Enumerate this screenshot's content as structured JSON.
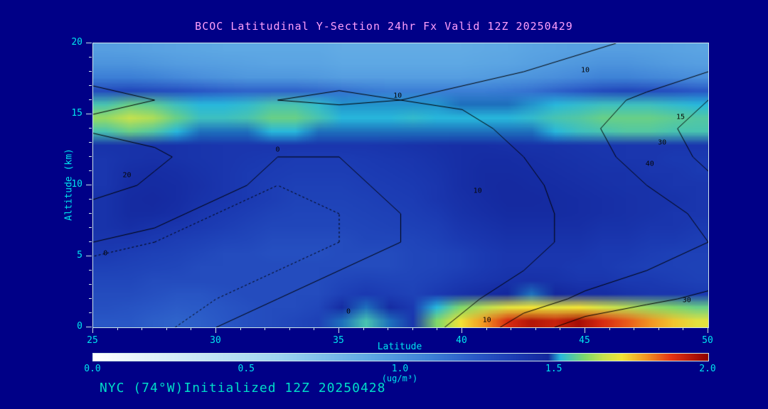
{
  "header": {
    "title": "BCOC Latitudinal Y-Section 24hr  Fx Valid 12Z 20250429"
  },
  "footer": {
    "text": "NYC (74°W)Initialized 12Z 20250428"
  },
  "colors": {
    "background": "#000087",
    "title_text": "#ff9ffb",
    "footer_text": "#00ddc8",
    "axis_text": "#00e5ee",
    "frame": "#cfe8e8",
    "contour_line": "#000000"
  },
  "colorbar": {
    "ticks": [
      "0.0",
      "0.5",
      "1.0",
      "1.5",
      "2.0"
    ],
    "min": 0.0,
    "max": 2.0,
    "unit_label": "(ug/m³)"
  },
  "chart_data": {
    "type": "heatmap",
    "title": "BCOC Latitudinal Y-Section 24hr  Fx Valid 12Z 20250429",
    "xlabel": "Latitude",
    "ylabel": "Altitude (km)",
    "x_ticks": [
      25,
      30,
      35,
      40,
      45,
      50
    ],
    "y_ticks": [
      0,
      5,
      10,
      15,
      20
    ],
    "x_range": [
      25,
      50
    ],
    "y_range": [
      0,
      20
    ],
    "x_step": 1,
    "y_step": 1,
    "fill_units": "ug/m³",
    "fill_range": [
      0,
      2
    ],
    "grid": false,
    "legend_position": "bottom-colorbar",
    "values_note": "rows from altitude 0 km (bottom) to 20 km (top); columns latitude 25 to 50",
    "values": [
      [
        1.25,
        1.25,
        1.22,
        1.2,
        1.22,
        1.25,
        1.28,
        1.3,
        1.32,
        1.35,
        1.5,
        1.55,
        1.5,
        1.4,
        1.6,
        1.72,
        1.8,
        1.9,
        1.95,
        1.92,
        1.97,
        1.9,
        1.85,
        1.8,
        1.75,
        1.7
      ],
      [
        1.28,
        1.27,
        1.25,
        1.23,
        1.24,
        1.26,
        1.28,
        1.3,
        1.3,
        1.32,
        1.45,
        1.5,
        1.45,
        1.38,
        1.52,
        1.6,
        1.65,
        1.7,
        1.72,
        1.7,
        1.72,
        1.68,
        1.65,
        1.62,
        1.6,
        1.58
      ],
      [
        1.3,
        1.3,
        1.28,
        1.26,
        1.26,
        1.28,
        1.3,
        1.3,
        1.3,
        1.3,
        1.35,
        1.38,
        1.36,
        1.34,
        1.38,
        1.42,
        1.45,
        1.48,
        1.5,
        1.48,
        1.45,
        1.45,
        1.42,
        1.4,
        1.4,
        1.38
      ],
      [
        1.32,
        1.32,
        1.3,
        1.3,
        1.3,
        1.3,
        1.3,
        1.3,
        1.3,
        1.3,
        1.32,
        1.34,
        1.33,
        1.33,
        1.35,
        1.38,
        1.4,
        1.42,
        1.43,
        1.42,
        1.4,
        1.4,
        1.38,
        1.38,
        1.36,
        1.35
      ],
      [
        1.35,
        1.34,
        1.33,
        1.32,
        1.3,
        1.3,
        1.3,
        1.3,
        1.3,
        1.3,
        1.3,
        1.3,
        1.3,
        1.32,
        1.33,
        1.35,
        1.38,
        1.4,
        1.4,
        1.4,
        1.38,
        1.38,
        1.36,
        1.35,
        1.35,
        1.34
      ],
      [
        1.38,
        1.36,
        1.35,
        1.34,
        1.32,
        1.3,
        1.3,
        1.28,
        1.28,
        1.28,
        1.3,
        1.3,
        1.3,
        1.32,
        1.33,
        1.35,
        1.38,
        1.4,
        1.4,
        1.4,
        1.4,
        1.38,
        1.38,
        1.36,
        1.35,
        1.35
      ],
      [
        1.4,
        1.4,
        1.38,
        1.36,
        1.35,
        1.33,
        1.32,
        1.3,
        1.3,
        1.3,
        1.3,
        1.32,
        1.32,
        1.33,
        1.35,
        1.38,
        1.4,
        1.42,
        1.42,
        1.42,
        1.42,
        1.4,
        1.4,
        1.38,
        1.38,
        1.36
      ],
      [
        1.42,
        1.44,
        1.42,
        1.4,
        1.38,
        1.36,
        1.34,
        1.32,
        1.32,
        1.32,
        1.32,
        1.33,
        1.34,
        1.35,
        1.36,
        1.4,
        1.42,
        1.44,
        1.44,
        1.44,
        1.44,
        1.42,
        1.42,
        1.4,
        1.4,
        1.38
      ],
      [
        1.42,
        1.46,
        1.46,
        1.44,
        1.4,
        1.38,
        1.36,
        1.34,
        1.33,
        1.33,
        1.33,
        1.34,
        1.35,
        1.36,
        1.38,
        1.42,
        1.44,
        1.46,
        1.46,
        1.46,
        1.45,
        1.44,
        1.43,
        1.42,
        1.4,
        1.4
      ],
      [
        1.42,
        1.46,
        1.47,
        1.45,
        1.42,
        1.4,
        1.38,
        1.36,
        1.34,
        1.34,
        1.34,
        1.35,
        1.36,
        1.37,
        1.4,
        1.43,
        1.45,
        1.47,
        1.47,
        1.46,
        1.45,
        1.44,
        1.43,
        1.42,
        1.42,
        1.4
      ],
      [
        1.4,
        1.45,
        1.46,
        1.45,
        1.43,
        1.4,
        1.38,
        1.36,
        1.35,
        1.35,
        1.35,
        1.36,
        1.37,
        1.38,
        1.4,
        1.44,
        1.46,
        1.47,
        1.46,
        1.45,
        1.44,
        1.43,
        1.42,
        1.42,
        1.4,
        1.4
      ],
      [
        1.4,
        1.44,
        1.45,
        1.44,
        1.42,
        1.4,
        1.38,
        1.37,
        1.36,
        1.36,
        1.36,
        1.37,
        1.38,
        1.39,
        1.41,
        1.44,
        1.46,
        1.46,
        1.45,
        1.44,
        1.43,
        1.42,
        1.42,
        1.4,
        1.4,
        1.38
      ],
      [
        1.4,
        1.42,
        1.43,
        1.42,
        1.41,
        1.4,
        1.39,
        1.38,
        1.37,
        1.37,
        1.37,
        1.38,
        1.39,
        1.4,
        1.42,
        1.44,
        1.45,
        1.45,
        1.44,
        1.43,
        1.42,
        1.41,
        1.4,
        1.4,
        1.38,
        1.38
      ],
      [
        1.42,
        1.42,
        1.42,
        1.42,
        1.41,
        1.4,
        1.4,
        1.4,
        1.4,
        1.4,
        1.4,
        1.4,
        1.41,
        1.42,
        1.43,
        1.44,
        1.44,
        1.43,
        1.42,
        1.42,
        1.41,
        1.4,
        1.4,
        1.4,
        1.4,
        1.4
      ],
      [
        1.55,
        1.58,
        1.56,
        1.52,
        1.5,
        1.5,
        1.5,
        1.52,
        1.52,
        1.5,
        1.5,
        1.5,
        1.5,
        1.5,
        1.5,
        1.5,
        1.5,
        1.5,
        1.5,
        1.52,
        1.54,
        1.55,
        1.56,
        1.56,
        1.55,
        1.55
      ],
      [
        1.62,
        1.66,
        1.64,
        1.58,
        1.54,
        1.54,
        1.55,
        1.58,
        1.58,
        1.55,
        1.52,
        1.52,
        1.52,
        1.53,
        1.52,
        1.52,
        1.52,
        1.52,
        1.53,
        1.55,
        1.56,
        1.58,
        1.58,
        1.58,
        1.57,
        1.56
      ],
      [
        1.55,
        1.58,
        1.57,
        1.54,
        1.52,
        1.52,
        1.53,
        1.55,
        1.55,
        1.53,
        1.51,
        1.51,
        1.51,
        1.51,
        1.51,
        1.5,
        1.5,
        1.5,
        1.51,
        1.52,
        1.53,
        1.54,
        1.54,
        1.54,
        1.53,
        1.52
      ],
      [
        1.3,
        1.32,
        1.3,
        1.28,
        1.25,
        1.22,
        1.2,
        1.2,
        1.2,
        1.18,
        1.15,
        1.12,
        1.1,
        1.1,
        1.1,
        1.1,
        1.1,
        1.12,
        1.15,
        1.2,
        1.25,
        1.3,
        1.32,
        1.3,
        1.28,
        1.25
      ],
      [
        1.1,
        1.1,
        1.08,
        1.05,
        1.02,
        1.0,
        0.98,
        0.98,
        0.98,
        0.97,
        0.95,
        0.95,
        0.95,
        0.95,
        0.95,
        0.95,
        0.96,
        0.98,
        1.0,
        1.02,
        1.05,
        1.08,
        1.08,
        1.06,
        1.04,
        1.02
      ],
      [
        1.0,
        1.0,
        0.98,
        0.96,
        0.95,
        0.94,
        0.93,
        0.92,
        0.92,
        0.92,
        0.9,
        0.9,
        0.9,
        0.9,
        0.9,
        0.9,
        0.91,
        0.92,
        0.94,
        0.96,
        0.98,
        1.0,
        1.0,
        0.98,
        0.96,
        0.95
      ],
      [
        0.95,
        0.94,
        0.93,
        0.92,
        0.91,
        0.9,
        0.9,
        0.9,
        0.9,
        0.9,
        0.88,
        0.88,
        0.88,
        0.88,
        0.88,
        0.88,
        0.89,
        0.9,
        0.92,
        0.93,
        0.94,
        0.95,
        0.95,
        0.94,
        0.93,
        0.92
      ]
    ],
    "colormap": [
      [
        0.0,
        "#ffffff"
      ],
      [
        0.3,
        "#cfe9f7"
      ],
      [
        0.6,
        "#9ed4f0"
      ],
      [
        0.9,
        "#5ea8e4"
      ],
      [
        1.1,
        "#3c7fd6"
      ],
      [
        1.25,
        "#2957c6"
      ],
      [
        1.38,
        "#1b3ab2"
      ],
      [
        1.48,
        "#14289e"
      ],
      [
        1.52,
        "#28b8dc"
      ],
      [
        1.6,
        "#7fd86a"
      ],
      [
        1.66,
        "#c6e24e"
      ],
      [
        1.72,
        "#f2e436"
      ],
      [
        1.8,
        "#f29422"
      ],
      [
        1.88,
        "#e63414"
      ],
      [
        2.0,
        "#8f0000"
      ]
    ],
    "contour_levels": [
      -2,
      0,
      10,
      20,
      30,
      40
    ],
    "contour_note": "overlaid black line contours; rows from altitude 0 km (bottom, step 2 km) to 20 km, columns latitude 25 to 50 step 2.5",
    "contour_values": [
      [
        -5,
        -3,
        0,
        2,
        3,
        5,
        12,
        25,
        35,
        38,
        40
      ],
      [
        -5,
        -4,
        -2,
        0,
        2,
        4,
        8,
        15,
        22,
        28,
        32
      ],
      [
        -4,
        -4,
        -3,
        -2,
        0,
        2,
        5,
        10,
        15,
        20,
        25
      ],
      [
        0,
        -2,
        -3,
        -3,
        -2,
        0,
        3,
        8,
        12,
        16,
        20
      ],
      [
        5,
        2,
        -2,
        -3,
        -2,
        0,
        4,
        8,
        12,
        16,
        22
      ],
      [
        15,
        8,
        2,
        -2,
        -2,
        2,
        5,
        8,
        14,
        20,
        28
      ],
      [
        20,
        12,
        5,
        0,
        0,
        3,
        6,
        10,
        16,
        24,
        32
      ],
      [
        8,
        6,
        5,
        4,
        5,
        6,
        8,
        12,
        18,
        26,
        34
      ],
      [
        12,
        10,
        9,
        10,
        11,
        10,
        11,
        13,
        16,
        22,
        30
      ],
      [
        8,
        7,
        7,
        8,
        8,
        8,
        9,
        10,
        12,
        15,
        20
      ],
      [
        5,
        5,
        5,
        6,
        6,
        6,
        7,
        8,
        9,
        11,
        14
      ]
    ],
    "contour_labels": [
      {
        "text": "10",
        "x": 0.495,
        "y": 0.185
      },
      {
        "text": "10",
        "x": 0.8,
        "y": 0.095
      },
      {
        "text": "0",
        "x": 0.3,
        "y": 0.375
      },
      {
        "text": "20",
        "x": 0.055,
        "y": 0.465
      },
      {
        "text": "30",
        "x": 0.925,
        "y": 0.35
      },
      {
        "text": "40",
        "x": 0.905,
        "y": 0.425
      },
      {
        "text": "10",
        "x": 0.625,
        "y": 0.52
      },
      {
        "text": "0",
        "x": 0.02,
        "y": 0.74
      },
      {
        "text": "0",
        "x": 0.415,
        "y": 0.945
      },
      {
        "text": "10",
        "x": 0.64,
        "y": 0.975
      },
      {
        "text": "30",
        "x": 0.965,
        "y": 0.905
      },
      {
        "text": "15",
        "x": 0.955,
        "y": 0.26
      }
    ]
  }
}
